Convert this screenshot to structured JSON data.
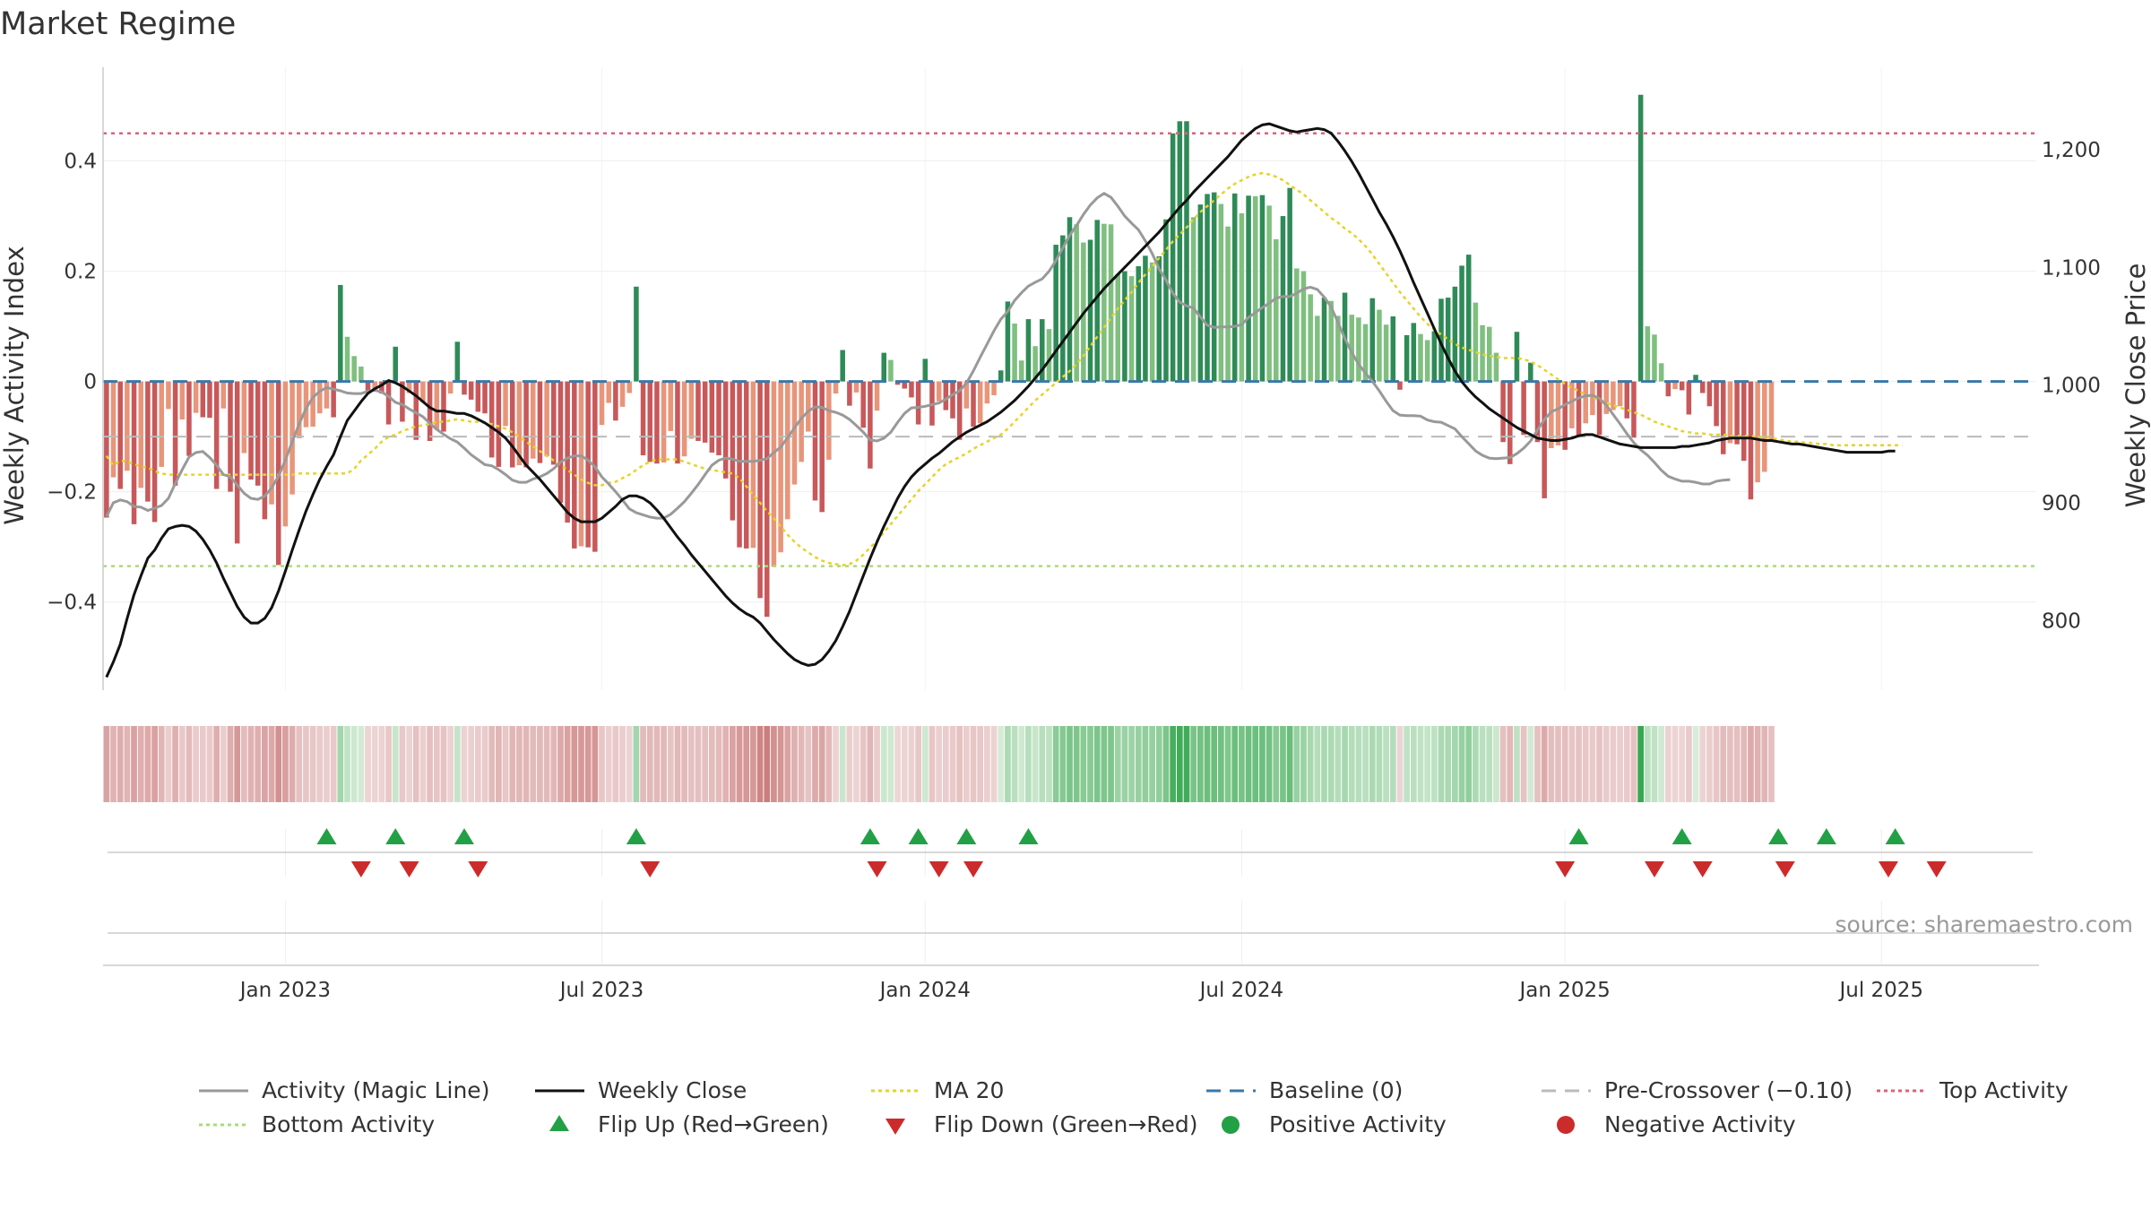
{
  "title": "Market Regime",
  "source": "source: sharemaestro.com",
  "colors": {
    "green_dark": "#2e8b57",
    "green_light": "#7fbf7f",
    "red_dark": "#c8585a",
    "red_light": "#e8957a",
    "close_line": "#111111",
    "magic_line": "#999999",
    "ma20": "#e6d32a",
    "baseline": "#3a78a8",
    "pre_crossover": "#bbbbbb",
    "top_activity": "#e0607a",
    "bottom_activity": "#a8dc7a",
    "flip_up": "#22a045",
    "flip_down": "#cc2b2b"
  },
  "legend": [
    {
      "label": "Activity (Magic Line)",
      "kind": "line",
      "color": "#999999",
      "dash": "solid"
    },
    {
      "label": "Weekly Close",
      "kind": "line",
      "color": "#111111",
      "dash": "solid"
    },
    {
      "label": "MA 20",
      "kind": "line",
      "color": "#e6d32a",
      "dash": "dot"
    },
    {
      "label": "Baseline (0)",
      "kind": "line",
      "color": "#3a78a8",
      "dash": "dash"
    },
    {
      "label": "Pre-Crossover (−0.10)",
      "kind": "line",
      "color": "#bbbbbb",
      "dash": "dash"
    },
    {
      "label": "Top Activity",
      "kind": "line",
      "color": "#e0607a",
      "dash": "dot"
    },
    {
      "label": "Bottom Activity",
      "kind": "line",
      "color": "#a8dc7a",
      "dash": "dot"
    },
    {
      "label": "Flip Up (Red→Green)",
      "kind": "tri-up",
      "color": "#22a045"
    },
    {
      "label": "Flip Down (Green→Red)",
      "kind": "tri-down",
      "color": "#cc2b2b"
    },
    {
      "label": "Positive Activity",
      "kind": "dot",
      "color": "#22a045"
    },
    {
      "label": "Negative Activity",
      "kind": "dot",
      "color": "#cc2b2b"
    }
  ],
  "chart_data": {
    "type": "bar",
    "title": "Market Regime",
    "ylabel": "Weekly Activity Index",
    "y2label": "Weekly Close Price",
    "ylim": [
      -0.56,
      0.57
    ],
    "y2lim": [
      741,
      1270
    ],
    "yticks": [
      {
        "v": 0.4,
        "label": "0.4"
      },
      {
        "v": 0.2,
        "label": "0.2"
      },
      {
        "v": 0,
        "label": "0"
      },
      {
        "v": -0.2,
        "label": "−0.2"
      },
      {
        "v": -0.4,
        "label": "−0.4"
      }
    ],
    "y2ticks": [
      {
        "v": 1200,
        "label": "1,200"
      },
      {
        "v": 1100,
        "label": "1,100"
      },
      {
        "v": 1000,
        "label": "1,000"
      },
      {
        "v": 900,
        "label": "900"
      },
      {
        "v": 800,
        "label": "800"
      }
    ],
    "xticks": [
      {
        "week": 26,
        "label": "Jan 2023"
      },
      {
        "week": 72,
        "label": "Jul 2023"
      },
      {
        "week": 119,
        "label": "Jan 2024"
      },
      {
        "week": 165,
        "label": "Jul 2024"
      },
      {
        "week": 212,
        "label": "Jan 2025"
      },
      {
        "week": 258,
        "label": "Jul 2025"
      }
    ],
    "xlim": [
      -0.5,
      280.5
    ],
    "reference_lines": {
      "baseline": 0,
      "pre_crossover": -0.1,
      "top_activity": 0.45,
      "bottom_activity": -0.335
    },
    "activity": [
      -0.247,
      -0.174,
      -0.195,
      -0.162,
      -0.259,
      -0.193,
      -0.218,
      -0.255,
      -0.155,
      -0.05,
      -0.189,
      -0.069,
      -0.135,
      -0.057,
      -0.065,
      -0.066,
      -0.195,
      -0.049,
      -0.2,
      -0.294,
      -0.13,
      -0.178,
      -0.189,
      -0.25,
      -0.223,
      -0.333,
      -0.263,
      -0.205,
      -0.103,
      -0.083,
      -0.082,
      -0.058,
      -0.049,
      -0.065,
      0.175,
      0.081,
      0.046,
      0.027,
      -0.018,
      -0.016,
      -0.022,
      -0.078,
      0.063,
      -0.073,
      -0.021,
      -0.106,
      -0.038,
      -0.108,
      -0.087,
      -0.091,
      -0.022,
      0.072,
      -0.024,
      -0.033,
      -0.055,
      -0.058,
      -0.138,
      -0.155,
      -0.081,
      -0.156,
      -0.152,
      -0.156,
      -0.14,
      -0.148,
      -0.136,
      -0.151,
      -0.22,
      -0.256,
      -0.303,
      -0.299,
      -0.301,
      -0.309,
      -0.079,
      -0.039,
      -0.071,
      -0.046,
      -0.021,
      0.172,
      -0.134,
      -0.146,
      -0.149,
      -0.147,
      -0.09,
      -0.149,
      -0.136,
      -0.104,
      -0.108,
      -0.111,
      -0.129,
      -0.134,
      -0.176,
      -0.252,
      -0.301,
      -0.303,
      -0.302,
      -0.393,
      -0.427,
      -0.336,
      -0.31,
      -0.25,
      -0.187,
      -0.146,
      -0.091,
      -0.216,
      -0.237,
      -0.142,
      -0.022,
      0.057,
      -0.044,
      -0.02,
      -0.084,
      -0.158,
      -0.053,
      0.052,
      0.039,
      -0.006,
      -0.013,
      -0.029,
      -0.078,
      0.041,
      -0.08,
      -0.036,
      -0.052,
      -0.067,
      -0.106,
      -0.049,
      -0.082,
      -0.076,
      -0.04,
      -0.025,
      0.02,
      0.145,
      0.105,
      0.038,
      0.113,
      0.064,
      0.113,
      0.095,
      0.248,
      0.265,
      0.298,
      0.285,
      0.252,
      0.257,
      0.293,
      0.286,
      0.285,
      0.195,
      0.2,
      0.191,
      0.209,
      0.228,
      0.216,
      0.227,
      0.294,
      0.45,
      0.472,
      0.472,
      0.298,
      0.321,
      0.34,
      0.343,
      0.322,
      0.281,
      0.341,
      0.305,
      0.337,
      0.336,
      0.338,
      0.319,
      0.258,
      0.3,
      0.351,
      0.205,
      0.2,
      0.158,
      0.119,
      0.152,
      0.146,
      0.119,
      0.161,
      0.121,
      0.116,
      0.104,
      0.151,
      0.13,
      0.103,
      0.118,
      -0.015,
      0.084,
      0.106,
      0.086,
      0.075,
      0.091,
      0.15,
      0.152,
      0.172,
      0.21,
      0.23,
      0.143,
      0.102,
      0.099,
      0.052,
      -0.11,
      -0.15,
      0.09,
      -0.097,
      0.034,
      -0.11,
      -0.212,
      -0.121,
      -0.116,
      -0.124,
      -0.085,
      -0.099,
      -0.076,
      -0.061,
      -0.097,
      -0.059,
      -0.052,
      -0.045,
      -0.067,
      -0.102,
      0.52,
      0.1,
      0.085,
      0.033,
      -0.027,
      -0.014,
      -0.016,
      -0.06,
      0.012,
      -0.021,
      -0.045,
      -0.081,
      -0.132,
      -0.112,
      -0.114,
      -0.144,
      -0.214,
      -0.183,
      -0.164,
      -0.109
    ],
    "magic_line": [
      -0.245,
      -0.22,
      -0.215,
      -0.218,
      -0.227,
      -0.228,
      -0.234,
      -0.23,
      -0.225,
      -0.212,
      -0.185,
      -0.16,
      -0.137,
      -0.129,
      -0.127,
      -0.138,
      -0.152,
      -0.169,
      -0.173,
      -0.188,
      -0.203,
      -0.212,
      -0.214,
      -0.208,
      -0.193,
      -0.172,
      -0.143,
      -0.109,
      -0.077,
      -0.049,
      -0.029,
      -0.018,
      -0.011,
      -0.014,
      -0.017,
      -0.021,
      -0.022,
      -0.022,
      -0.018,
      -0.016,
      -0.019,
      -0.027,
      -0.038,
      -0.042,
      -0.05,
      -0.057,
      -0.064,
      -0.076,
      -0.087,
      -0.096,
      -0.104,
      -0.11,
      -0.121,
      -0.133,
      -0.142,
      -0.151,
      -0.153,
      -0.16,
      -0.169,
      -0.179,
      -0.183,
      -0.183,
      -0.177,
      -0.173,
      -0.167,
      -0.158,
      -0.146,
      -0.139,
      -0.135,
      -0.135,
      -0.143,
      -0.155,
      -0.173,
      -0.186,
      -0.2,
      -0.215,
      -0.231,
      -0.238,
      -0.242,
      -0.246,
      -0.248,
      -0.248,
      -0.241,
      -0.23,
      -0.218,
      -0.203,
      -0.187,
      -0.169,
      -0.152,
      -0.143,
      -0.139,
      -0.141,
      -0.145,
      -0.145,
      -0.145,
      -0.143,
      -0.14,
      -0.129,
      -0.119,
      -0.102,
      -0.084,
      -0.067,
      -0.054,
      -0.046,
      -0.047,
      -0.053,
      -0.056,
      -0.061,
      -0.069,
      -0.08,
      -0.092,
      -0.106,
      -0.108,
      -0.103,
      -0.092,
      -0.074,
      -0.058,
      -0.048,
      -0.047,
      -0.045,
      -0.042,
      -0.039,
      -0.032,
      -0.024,
      -0.017,
      -0.003,
      0.019,
      0.044,
      0.068,
      0.092,
      0.113,
      0.127,
      0.147,
      0.161,
      0.173,
      0.18,
      0.186,
      0.2,
      0.219,
      0.242,
      0.265,
      0.283,
      0.303,
      0.32,
      0.333,
      0.341,
      0.334,
      0.318,
      0.3,
      0.287,
      0.275,
      0.255,
      0.232,
      0.204,
      0.184,
      0.16,
      0.144,
      0.137,
      0.133,
      0.117,
      0.102,
      0.098,
      0.099,
      0.099,
      0.1,
      0.103,
      0.116,
      0.125,
      0.134,
      0.142,
      0.151,
      0.154,
      0.154,
      0.16,
      0.168,
      0.171,
      0.167,
      0.153,
      0.135,
      0.107,
      0.078,
      0.053,
      0.031,
      0.015,
      0.0,
      -0.017,
      -0.036,
      -0.053,
      -0.061,
      -0.062,
      -0.062,
      -0.063,
      -0.07,
      -0.073,
      -0.074,
      -0.08,
      -0.086,
      -0.1,
      -0.113,
      -0.126,
      -0.134,
      -0.139,
      -0.14,
      -0.139,
      -0.138,
      -0.131,
      -0.121,
      -0.108,
      -0.088,
      -0.069,
      -0.055,
      -0.05,
      -0.042,
      -0.036,
      -0.03,
      -0.026,
      -0.025,
      -0.031,
      -0.043,
      -0.06,
      -0.077,
      -0.095,
      -0.111,
      -0.124,
      -0.134,
      -0.147,
      -0.161,
      -0.172,
      -0.177,
      -0.181,
      -0.181,
      -0.183,
      -0.186,
      -0.186,
      -0.181,
      -0.179,
      -0.178
    ],
    "weekly_close": [
      752,
      765,
      780,
      802,
      822,
      838,
      853,
      860,
      870,
      878,
      880,
      881,
      880,
      876,
      869,
      860,
      849,
      836,
      824,
      812,
      803,
      798,
      798,
      802,
      811,
      825,
      842,
      860,
      877,
      893,
      907,
      920,
      931,
      941,
      956,
      970,
      978,
      986,
      993,
      997,
      1000,
      1004,
      1002,
      999,
      995,
      991,
      986,
      981,
      978,
      978,
      977,
      976,
      976,
      974,
      971,
      968,
      964,
      960,
      955,
      948,
      940,
      932,
      926,
      920,
      913,
      906,
      899,
      892,
      887,
      884,
      884,
      884,
      887,
      892,
      897,
      903,
      906,
      906,
      904,
      900,
      894,
      887,
      879,
      871,
      864,
      856,
      849,
      842,
      835,
      828,
      821,
      815,
      810,
      806,
      803,
      798,
      791,
      784,
      778,
      772,
      767,
      764,
      762,
      763,
      767,
      774,
      783,
      795,
      808,
      823,
      838,
      853,
      867,
      880,
      892,
      904,
      914,
      922,
      928,
      933,
      938,
      942,
      947,
      952,
      956,
      960,
      963,
      966,
      969,
      973,
      977,
      982,
      987,
      993,
      999,
      1006,
      1013,
      1021,
      1029,
      1037,
      1045,
      1053,
      1061,
      1068,
      1075,
      1082,
      1088,
      1094,
      1100,
      1106,
      1112,
      1118,
      1124,
      1130,
      1137,
      1144,
      1151,
      1157,
      1164,
      1170,
      1176,
      1182,
      1188,
      1194,
      1201,
      1208,
      1213,
      1218,
      1221,
      1222,
      1220,
      1218,
      1216,
      1215,
      1216,
      1217,
      1218,
      1217,
      1214,
      1207,
      1199,
      1190,
      1180,
      1169,
      1158,
      1147,
      1137,
      1126,
      1114,
      1101,
      1087,
      1074,
      1061,
      1048,
      1035,
      1023,
      1012,
      1003,
      996,
      990,
      985,
      980,
      976,
      972,
      968,
      964,
      961,
      958,
      955,
      954,
      953,
      953,
      954,
      955,
      957,
      958,
      958,
      956,
      954,
      952,
      950,
      949,
      948,
      947,
      947,
      947,
      947,
      947,
      947,
      948,
      948,
      949,
      950,
      951,
      953,
      954,
      955,
      955,
      955,
      955,
      954,
      953,
      953,
      952,
      951,
      950,
      950,
      949,
      948,
      947,
      946,
      945,
      944,
      943,
      943,
      943,
      943,
      943,
      943,
      944,
      944
    ],
    "ma20": [
      940,
      932,
      936,
      935,
      933,
      931,
      930,
      927,
      925,
      924,
      924,
      924,
      924,
      924,
      924,
      924,
      924,
      924,
      924,
      924,
      924,
      924,
      924,
      924,
      924,
      924,
      924,
      924,
      925,
      925,
      925,
      925,
      925,
      925,
      925,
      925,
      929,
      936,
      941,
      946,
      952,
      956,
      958,
      961,
      963,
      965,
      966,
      967,
      969,
      969,
      970,
      971,
      970,
      969,
      969,
      968,
      967,
      965,
      963,
      960,
      956,
      952,
      948,
      944,
      940,
      936,
      932,
      928,
      924,
      920,
      917,
      915,
      915,
      917,
      918,
      921,
      924,
      928,
      932,
      935,
      937,
      937,
      937,
      937,
      935,
      933,
      931,
      929,
      928,
      927,
      926,
      925,
      921,
      914,
      907,
      900,
      893,
      887,
      880,
      873,
      867,
      862,
      858,
      854,
      851,
      849,
      848,
      847,
      848,
      851,
      856,
      862,
      868,
      875,
      882,
      889,
      896,
      903,
      910,
      916,
      922,
      928,
      933,
      936,
      939,
      942,
      946,
      949,
      952,
      955,
      958,
      963,
      969,
      975,
      981,
      987,
      992,
      997,
      1002,
      1007,
      1012,
      1018,
      1025,
      1033,
      1041,
      1049,
      1057,
      1065,
      1072,
      1079,
      1087,
      1094,
      1101,
      1108,
      1115,
      1122,
      1128,
      1134,
      1141,
      1147,
      1152,
      1157,
      1162,
      1167,
      1171,
      1174,
      1177,
      1179,
      1180,
      1179,
      1177,
      1174,
      1170,
      1166,
      1162,
      1157,
      1152,
      1147,
      1142,
      1138,
      1133,
      1129,
      1124,
      1118,
      1111,
      1103,
      1095,
      1087,
      1079,
      1072,
      1065,
      1058,
      1052,
      1047,
      1043,
      1039,
      1035,
      1032,
      1030,
      1028,
      1026,
      1025,
      1024,
      1023,
      1023,
      1023,
      1022,
      1020,
      1017,
      1013,
      1009,
      1005,
      1001,
      998,
      995,
      992,
      990,
      987,
      985,
      983,
      981,
      979,
      977,
      975,
      972,
      969,
      967,
      965,
      963,
      961,
      960,
      959,
      959,
      958,
      958,
      958,
      957,
      957,
      957,
      957,
      956,
      956,
      955,
      954,
      953,
      952,
      952,
      951,
      951,
      950,
      950,
      949,
      949,
      949,
      949,
      949,
      949,
      949,
      949,
      949,
      949,
      949
    ],
    "flip_up_weeks": [
      32,
      42,
      52,
      77,
      111,
      118,
      125,
      134,
      214,
      229,
      243,
      250,
      260
    ],
    "flip_down_weeks": [
      37,
      44,
      54,
      79,
      112,
      121,
      126,
      212,
      225,
      232,
      244,
      259,
      266
    ]
  }
}
